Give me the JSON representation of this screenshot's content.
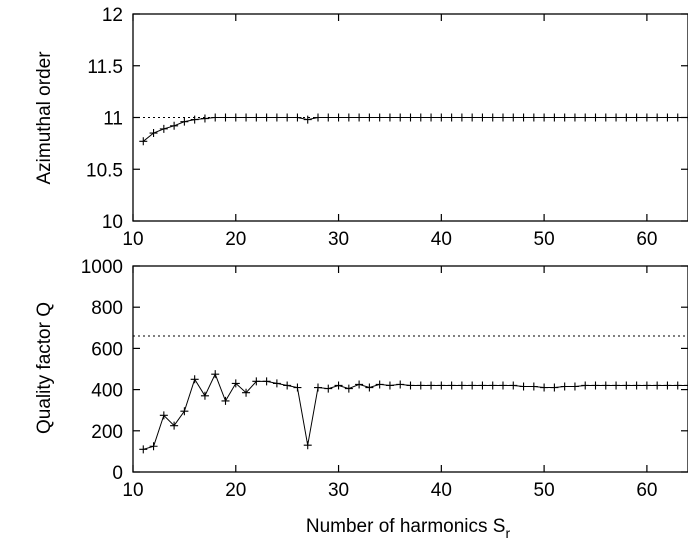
{
  "chart_data": [
    {
      "type": "line",
      "ylabel": "Azimuthal order",
      "xlim": [
        10,
        64
      ],
      "ylim": [
        10,
        12
      ],
      "xticks": [
        10,
        20,
        30,
        40,
        50,
        60
      ],
      "yticks": [
        10,
        10.5,
        11,
        11.5,
        12
      ],
      "xtick_labels": [
        "10",
        "20",
        "30",
        "40",
        "50",
        "60"
      ],
      "ytick_labels": [
        "10",
        "10.5",
        "11",
        "11.5",
        "12"
      ],
      "reference_line": 11,
      "grid": false,
      "series": [
        {
          "x": [
            11,
            12,
            13,
            14,
            15,
            16,
            17,
            18,
            19,
            20,
            21,
            22,
            23,
            24,
            25,
            26,
            27,
            28,
            29,
            30,
            31,
            32,
            33,
            34,
            35,
            36,
            37,
            38,
            39,
            40,
            41,
            42,
            43,
            44,
            45,
            46,
            47,
            48,
            49,
            50,
            51,
            52,
            53,
            54,
            55,
            56,
            57,
            58,
            59,
            60,
            61,
            62,
            63,
            64
          ],
          "y": [
            10.77,
            10.85,
            10.89,
            10.92,
            10.96,
            10.98,
            10.99,
            11,
            11,
            11,
            11,
            11,
            11,
            11,
            11,
            11,
            10.98,
            11,
            11,
            11,
            11,
            11,
            11,
            11,
            11,
            11,
            11,
            11,
            11,
            11,
            11,
            11,
            11,
            11,
            11,
            11,
            11,
            11,
            11,
            11,
            11,
            11,
            11,
            11,
            11,
            11,
            11,
            11,
            11,
            11,
            11,
            11,
            11,
            11
          ]
        }
      ]
    },
    {
      "type": "line",
      "xlabel": "Number of harmonics S",
      "xlabel_sub": "r",
      "ylabel": "Quality factor Q",
      "xlim": [
        10,
        64
      ],
      "ylim": [
        0,
        1000
      ],
      "xticks": [
        10,
        20,
        30,
        40,
        50,
        60
      ],
      "yticks": [
        0,
        200,
        400,
        600,
        800,
        1000
      ],
      "xtick_labels": [
        "10",
        "20",
        "30",
        "40",
        "50",
        "60"
      ],
      "ytick_labels": [
        "0",
        "200",
        "400",
        "600",
        "800",
        "1000"
      ],
      "reference_line": 660,
      "grid": false,
      "series": [
        {
          "x": [
            11,
            12,
            13,
            14,
            15,
            16,
            17,
            18,
            19,
            20,
            21,
            22,
            23,
            24,
            25,
            26,
            27,
            28,
            29,
            30,
            31,
            32,
            33,
            34,
            35,
            36,
            37,
            38,
            39,
            40,
            41,
            42,
            43,
            44,
            45,
            46,
            47,
            48,
            49,
            50,
            51,
            52,
            53,
            54,
            55,
            56,
            57,
            58,
            59,
            60,
            61,
            62,
            63,
            64
          ],
          "y": [
            110,
            125,
            275,
            225,
            295,
            450,
            370,
            475,
            345,
            430,
            385,
            440,
            440,
            430,
            420,
            410,
            130,
            410,
            405,
            420,
            405,
            425,
            410,
            425,
            420,
            425,
            420,
            420,
            420,
            420,
            420,
            420,
            420,
            420,
            420,
            420,
            420,
            415,
            415,
            410,
            410,
            415,
            415,
            420,
            420,
            420,
            420,
            420,
            420,
            420,
            420,
            420,
            420,
            420
          ]
        }
      ]
    }
  ]
}
